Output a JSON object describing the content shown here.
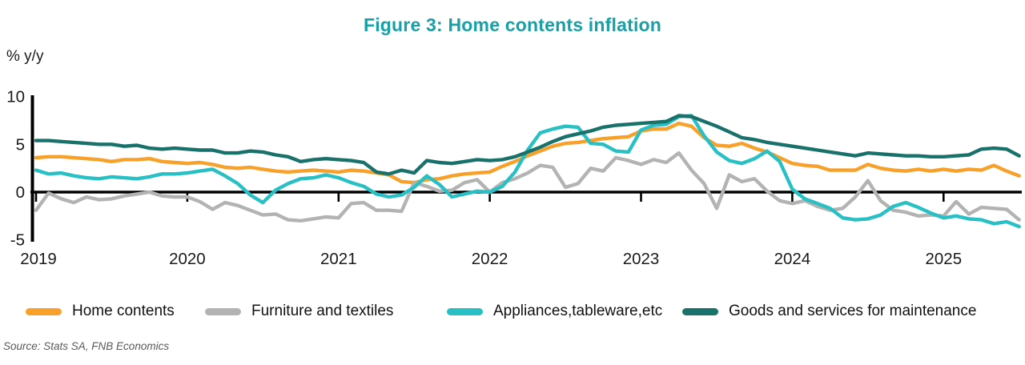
{
  "title": "Figure 3: Home contents inflation",
  "title_color": "#17A0A6",
  "y_axis_label": "% y/y",
  "source": "Source: Stats SA, FNB Economics",
  "axis": {
    "yticks": [
      10,
      5,
      0,
      -5
    ],
    "year_labels": [
      "2019",
      "2020",
      "2021",
      "2022",
      "2023",
      "2024",
      "2025"
    ],
    "axis_color": "#000000"
  },
  "chart_data": {
    "type": "line",
    "title": "Figure 3: Home contents inflation",
    "ylabel": "% y/y",
    "ylim": [
      -5,
      10
    ],
    "grid": false,
    "legend_position": "bottom",
    "x_unit": "monthly",
    "x_start": "2019-01",
    "x_end": "2025-07",
    "series": [
      {
        "name": "Home contents",
        "color": "#F7A12B",
        "values": [
          3.6,
          3.7,
          3.7,
          3.6,
          3.5,
          3.4,
          3.2,
          3.4,
          3.4,
          3.5,
          3.2,
          3.1,
          3.0,
          3.1,
          2.9,
          2.6,
          2.5,
          2.6,
          2.4,
          2.2,
          2.1,
          2.2,
          2.3,
          2.2,
          2.1,
          2.3,
          2.2,
          2.0,
          1.8,
          1.1,
          1.0,
          1.3,
          1.4,
          1.7,
          1.9,
          2.0,
          2.1,
          2.7,
          3.2,
          3.8,
          4.3,
          4.8,
          5.1,
          5.2,
          5.4,
          5.6,
          5.7,
          5.8,
          6.4,
          6.6,
          6.6,
          7.2,
          6.9,
          5.7,
          4.9,
          4.8,
          5.1,
          4.6,
          4.2,
          3.6,
          3.0,
          2.8,
          2.7,
          2.3,
          2.3,
          2.3,
          2.9,
          2.5,
          2.3,
          2.2,
          2.4,
          2.2,
          2.4,
          2.2,
          2.4,
          2.3,
          2.8,
          2.2,
          1.7
        ]
      },
      {
        "name": "Furniture and textiles",
        "color": "#B3B3B3",
        "values": [
          -1.9,
          -0.1,
          -0.7,
          -1.1,
          -0.5,
          -0.8,
          -0.7,
          -0.4,
          -0.2,
          0.0,
          -0.4,
          -0.5,
          -0.5,
          -1.0,
          -1.8,
          -1.1,
          -1.4,
          -1.9,
          -2.4,
          -2.3,
          -2.9,
          -3.0,
          -2.8,
          -2.6,
          -2.7,
          -1.2,
          -1.1,
          -1.9,
          -1.9,
          -2.0,
          1.0,
          0.6,
          0.1,
          0.2,
          1.0,
          1.3,
          0.0,
          1.0,
          1.4,
          2.0,
          2.8,
          2.6,
          0.5,
          0.9,
          2.5,
          2.2,
          3.6,
          3.3,
          2.9,
          3.4,
          3.1,
          4.1,
          2.3,
          0.9,
          -1.7,
          1.8,
          1.1,
          1.4,
          0.1,
          -0.9,
          -1.2,
          -0.9,
          -1.5,
          -1.9,
          -1.7,
          -0.5,
          1.2,
          -0.9,
          -1.9,
          -2.1,
          -2.5,
          -2.4,
          -2.5,
          -1.0,
          -2.3,
          -1.6,
          -1.7,
          -1.8,
          -2.9
        ]
      },
      {
        "name": "Appliances,tableware,etc",
        "color": "#28C0C4",
        "values": [
          2.3,
          1.9,
          2.0,
          1.7,
          1.5,
          1.4,
          1.6,
          1.5,
          1.4,
          1.6,
          1.9,
          1.9,
          2.0,
          2.2,
          2.4,
          1.7,
          0.9,
          -0.3,
          -1.1,
          0.2,
          0.9,
          1.4,
          1.5,
          1.8,
          1.5,
          1.0,
          0.6,
          -0.2,
          -0.5,
          -0.3,
          0.5,
          1.7,
          0.8,
          -0.5,
          -0.2,
          0.1,
          0.0,
          0.6,
          2.1,
          4.4,
          6.2,
          6.6,
          6.9,
          6.8,
          5.1,
          5.0,
          4.3,
          4.2,
          6.5,
          7.0,
          7.1,
          7.9,
          8.0,
          5.9,
          4.2,
          3.3,
          3.0,
          3.5,
          4.3,
          3.2,
          0.3,
          -0.7,
          -1.2,
          -1.7,
          -2.7,
          -2.9,
          -2.8,
          -2.4,
          -1.5,
          -1.1,
          -1.6,
          -2.2,
          -2.7,
          -2.5,
          -2.8,
          -2.9,
          -3.3,
          -3.1,
          -3.6
        ]
      },
      {
        "name": "Goods and services for maintenance",
        "color": "#19716B",
        "values": [
          5.4,
          5.4,
          5.3,
          5.2,
          5.1,
          5.0,
          5.0,
          4.8,
          4.9,
          4.6,
          4.5,
          4.6,
          4.5,
          4.4,
          4.4,
          4.1,
          4.1,
          4.3,
          4.2,
          3.9,
          3.7,
          3.2,
          3.4,
          3.5,
          3.4,
          3.3,
          3.1,
          2.1,
          1.9,
          2.3,
          2.0,
          3.3,
          3.1,
          3.0,
          3.2,
          3.4,
          3.3,
          3.4,
          3.7,
          4.2,
          4.7,
          5.3,
          5.8,
          6.1,
          6.4,
          6.8,
          7.0,
          7.1,
          7.2,
          7.3,
          7.4,
          8.0,
          7.9,
          7.4,
          6.9,
          6.3,
          5.7,
          5.5,
          5.2,
          5.0,
          4.8,
          4.6,
          4.4,
          4.2,
          4.0,
          3.8,
          4.1,
          4.0,
          3.9,
          3.8,
          3.8,
          3.7,
          3.7,
          3.8,
          3.9,
          4.5,
          4.6,
          4.5,
          3.8
        ]
      }
    ]
  },
  "legend": {
    "items": [
      "Home contents",
      "Furniture and textiles",
      "Appliances,tableware,etc",
      "Goods and services for maintenance"
    ]
  }
}
